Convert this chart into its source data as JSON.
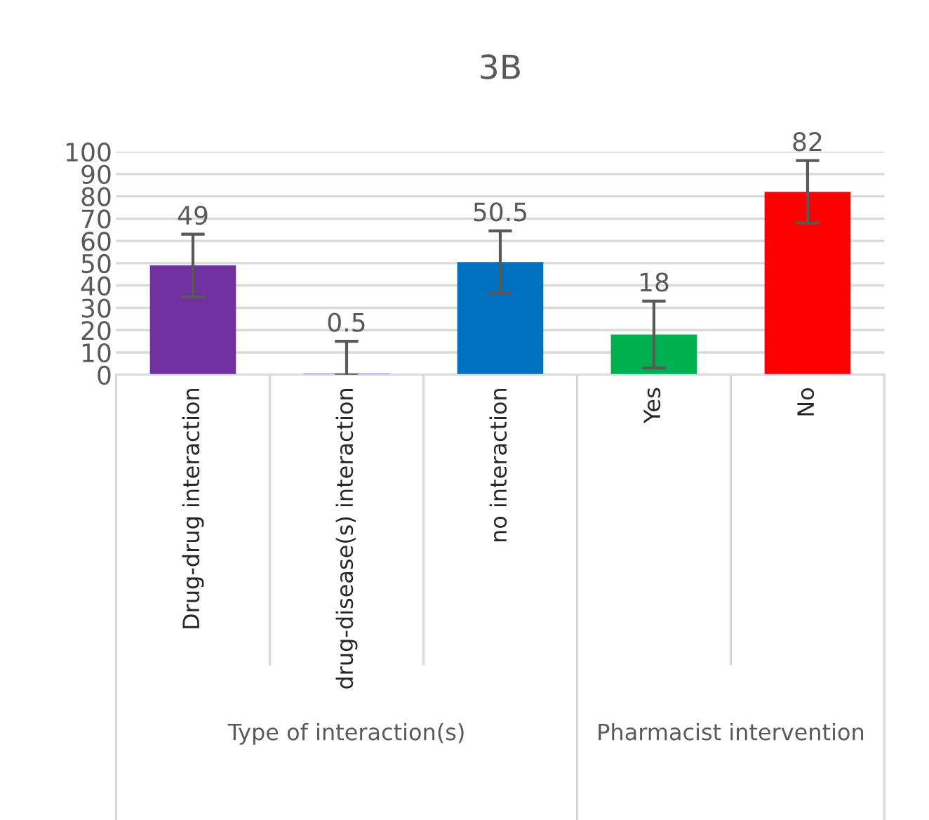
{
  "chart_data": {
    "type": "bar",
    "title": "3B",
    "categories": [
      "Drug-drug interaction",
      "drug-disease(s) interaction",
      "no interaction",
      "Yes",
      "No"
    ],
    "values": [
      49,
      0.5,
      50.5,
      18,
      82
    ],
    "colors": [
      "#7030a0",
      "#7030a0",
      "#0070c0",
      "#00b050",
      "#ff0000"
    ],
    "errors": [
      14,
      [
        0.5,
        14.5
      ],
      14,
      15,
      14
    ],
    "data_labels": true,
    "annotations": [
      "Type of interaction(s)",
      "Pharmacist intervention"
    ],
    "ylim": [
      0,
      100
    ],
    "yticks": [
      0,
      10,
      20,
      30,
      40,
      50,
      60,
      70,
      80,
      90,
      100
    ],
    "grid": "y"
  }
}
